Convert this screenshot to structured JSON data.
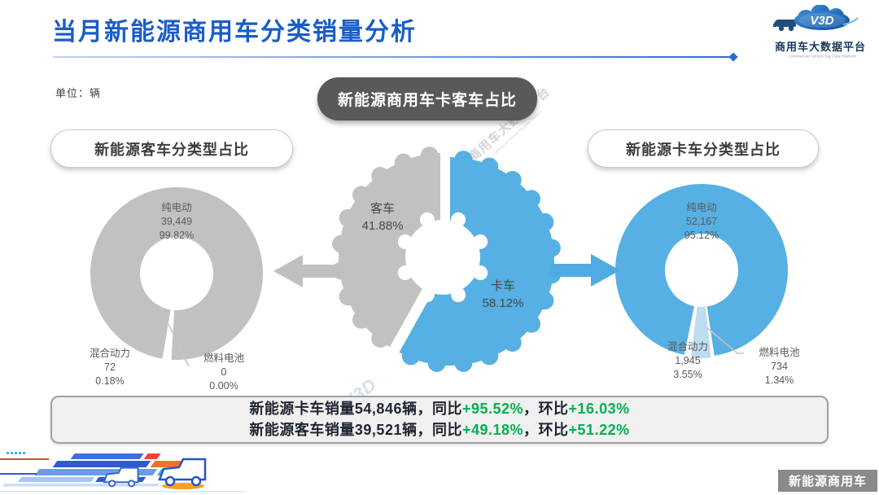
{
  "header": {
    "title": "当月新能源商用车分类销量分析",
    "unit_label": "单位：辆",
    "logo": {
      "brand": "V3D",
      "name": "商用车大数据平台",
      "caption": "Commercial Vehicle Big Data Platform"
    }
  },
  "pills": {
    "center": "新能源商用车卡客车占比",
    "left": "新能源客车分类型占比",
    "right": "新能源卡车分类型占比"
  },
  "watermark": {
    "name": "商用车大数据平台",
    "caption": "Commercial Vehicle Big Data Platform",
    "brand": "V3D"
  },
  "chart_data": [
    {
      "type": "pie",
      "title": "新能源商用车卡客车占比",
      "legend_position": "none",
      "slices": [
        {
          "label": "客车",
          "pct": "41.88%",
          "pct_num": 41.88,
          "color": "#C1C1C1"
        },
        {
          "label": "卡车",
          "pct": "58.12%",
          "pct_num": 58.12,
          "color": "#56B0E3"
        }
      ]
    },
    {
      "type": "pie",
      "title": "新能源客车分类型占比",
      "unit": "辆",
      "slices": [
        {
          "label": "纯电动",
          "value": "39,449",
          "pct": "99.82%",
          "pct_num": 99.82,
          "color": "#C1C1C1"
        },
        {
          "label": "混合动力",
          "value": "72",
          "pct": "0.18%",
          "pct_num": 0.18,
          "color": "#FFFFFF"
        },
        {
          "label": "燃料电池",
          "value": "0",
          "pct": "0.00%",
          "pct_num": 0.0,
          "color": "#FFFFFF"
        }
      ]
    },
    {
      "type": "pie",
      "title": "新能源卡车分类型占比",
      "unit": "辆",
      "slices": [
        {
          "label": "纯电动",
          "value": "52,167",
          "pct": "95.12%",
          "pct_num": 95.12,
          "color": "#56B0E3"
        },
        {
          "label": "混合动力",
          "value": "1,945",
          "pct": "3.55%",
          "pct_num": 3.55,
          "color": "#BCDDF2"
        },
        {
          "label": "燃料电池",
          "value": "734",
          "pct": "1.34%",
          "pct_num": 1.34,
          "color": "#FFFFFF"
        }
      ]
    }
  ],
  "summary": {
    "lines": [
      {
        "prefix": "新能源卡车销量",
        "volume": "54,846",
        "unit": "辆",
        "sep": "，",
        "yoy_label": "同比",
        "yoy": "+95.52%",
        "mom_label": "环比",
        "mom": "+16.03%"
      },
      {
        "prefix": "新能源客车销量",
        "volume": "39,521",
        "unit": "辆",
        "sep": "，",
        "yoy_label": "同比",
        "yoy": "+49.18%",
        "mom_label": "环比",
        "mom": "+51.22%"
      }
    ]
  },
  "badge": "新能源商用车",
  "colors": {
    "accent_blue": "#1A5DC8",
    "truck_blue": "#56B0E3",
    "bus_gray": "#C1C1C1",
    "light_blue": "#BCDDF2",
    "green": "#00B050",
    "pill_dark": "#595959",
    "badge_gray": "#8A8A8A"
  }
}
